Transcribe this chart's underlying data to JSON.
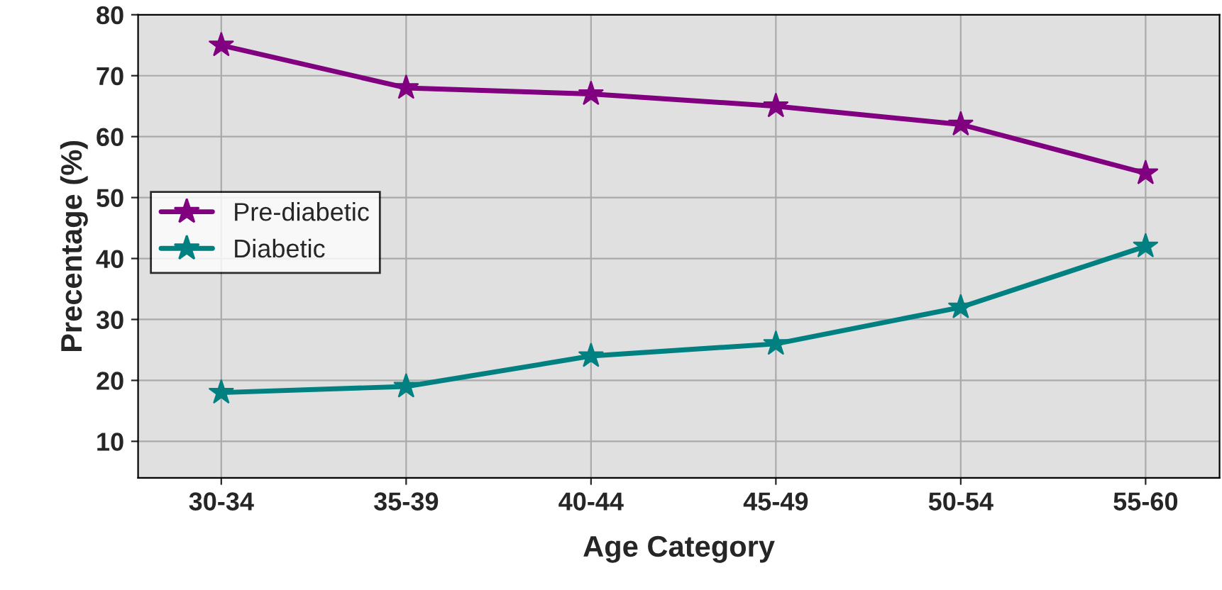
{
  "chart_data": {
    "type": "line",
    "xlabel": "Age Category",
    "ylabel": "Precentage (%)",
    "categories": [
      "30-34",
      "35-39",
      "40-44",
      "45-49",
      "50-54",
      "55-60"
    ],
    "series": [
      {
        "name": "Pre-diabetic",
        "color": "#800080",
        "values": [
          75,
          68,
          67,
          65,
          62,
          54
        ]
      },
      {
        "name": "Diabetic",
        "color": "#008080",
        "values": [
          18,
          19,
          24,
          26,
          32,
          42
        ]
      }
    ],
    "ylim": [
      4,
      80
    ],
    "yticks": [
      10,
      20,
      30,
      40,
      50,
      60,
      70,
      80
    ],
    "grid": true,
    "legend": "left",
    "marker": "star",
    "line_style": "solid"
  }
}
